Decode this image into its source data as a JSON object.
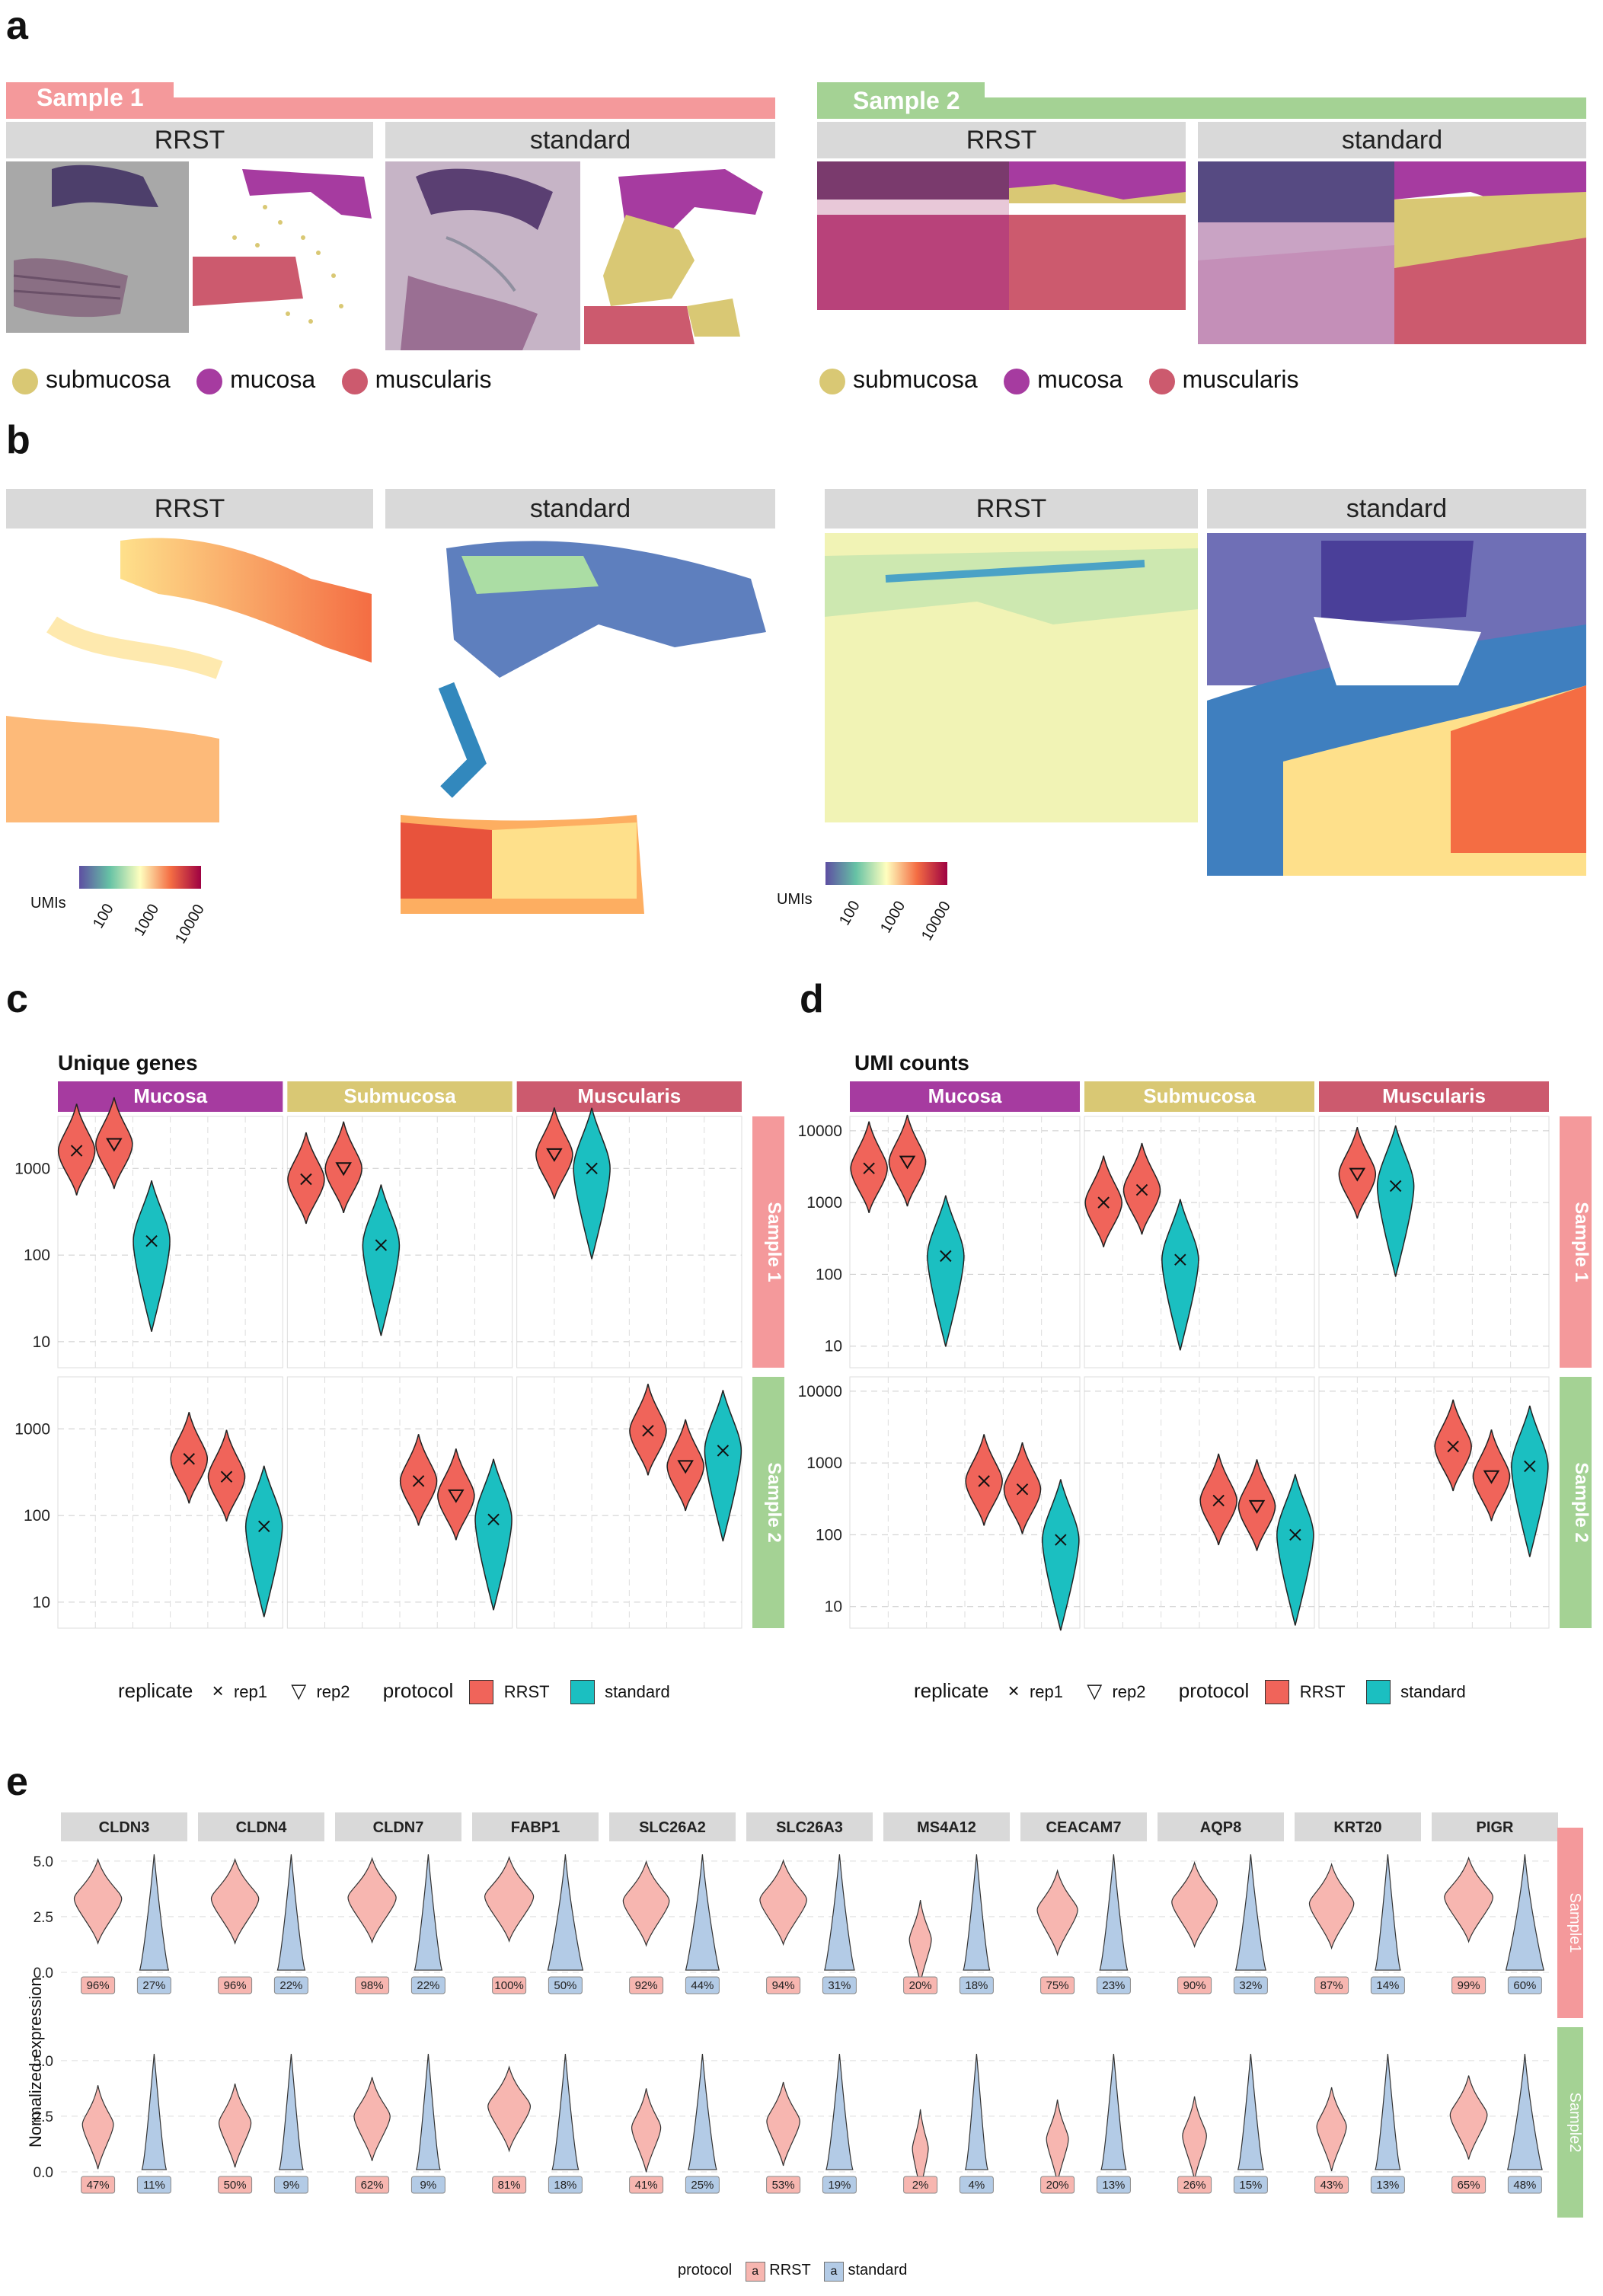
{
  "panels": {
    "a": "a",
    "b": "b",
    "c": "c",
    "d": "d",
    "e": "e"
  },
  "panel_a": {
    "sample1": "Sample 1",
    "sample2": "Sample 2",
    "rrst": "RRST",
    "standard": "standard",
    "legend": [
      {
        "label": "submucosa",
        "color": "#d9c874"
      },
      {
        "label": "mucosa",
        "color": "#a63ba0"
      },
      {
        "label": "muscularis",
        "color": "#cc5a6e"
      }
    ],
    "colors": {
      "sample1": "#f4999b",
      "sample2": "#a4d294",
      "strip": "#d9d9d9"
    }
  },
  "panel_b": {
    "rrst": "RRST",
    "standard": "standard",
    "cbar_label": "UMIs",
    "cbar_ticks": [
      "100",
      "1000",
      "10000"
    ]
  },
  "panel_c": {
    "title": "Unique genes",
    "facets": [
      "Mucosa",
      "Submucosa",
      "Muscularis"
    ],
    "rows": [
      "Sample 1",
      "Sample 2"
    ],
    "yticks": [
      "1000",
      "100",
      "10"
    ],
    "chart_data": {
      "type": "violin",
      "scale": "log10",
      "facet_colors": {
        "Mucosa": "#a63ba0",
        "Submucosa": "#d9c874",
        "Muscularis": "#cc5a6e"
      },
      "series": [
        {
          "row": "Sample 1",
          "facet": "Mucosa",
          "groups": [
            {
              "protocol": "RRST",
              "replicate": "rep1",
              "median": 1600
            },
            {
              "protocol": "RRST",
              "replicate": "rep2",
              "median": 1900
            },
            {
              "protocol": "standard",
              "replicate": "rep1",
              "median": 145
            }
          ]
        },
        {
          "row": "Sample 1",
          "facet": "Submucosa",
          "groups": [
            {
              "protocol": "RRST",
              "replicate": "rep1",
              "median": 750
            },
            {
              "protocol": "RRST",
              "replicate": "rep2",
              "median": 1000
            },
            {
              "protocol": "standard",
              "replicate": "rep1",
              "median": 130
            }
          ]
        },
        {
          "row": "Sample 1",
          "facet": "Muscularis",
          "groups": [
            {
              "protocol": "RRST",
              "replicate": "rep2",
              "median": 1450
            },
            {
              "protocol": "standard",
              "replicate": "rep1",
              "median": 1000
            }
          ]
        },
        {
          "row": "Sample 2",
          "facet": "Mucosa",
          "groups": [
            {
              "protocol": "RRST",
              "replicate": "rep1",
              "median": 450
            },
            {
              "protocol": "RRST",
              "replicate": "rep1",
              "median": 280
            },
            {
              "protocol": "standard",
              "replicate": "rep1",
              "median": 75
            }
          ]
        },
        {
          "row": "Sample 2",
          "facet": "Submucosa",
          "groups": [
            {
              "protocol": "RRST",
              "replicate": "rep1",
              "median": 250
            },
            {
              "protocol": "RRST",
              "replicate": "rep2",
              "median": 170
            },
            {
              "protocol": "standard",
              "replicate": "rep1",
              "median": 90
            }
          ]
        },
        {
          "row": "Sample 2",
          "facet": "Muscularis",
          "groups": [
            {
              "protocol": "RRST",
              "replicate": "rep1",
              "median": 950
            },
            {
              "protocol": "RRST",
              "replicate": "rep2",
              "median": 370
            },
            {
              "protocol": "standard",
              "replicate": "rep1",
              "median": 560
            }
          ]
        }
      ]
    }
  },
  "panel_d": {
    "title": "UMI counts",
    "facets": [
      "Mucosa",
      "Submucosa",
      "Muscularis"
    ],
    "rows": [
      "Sample 1",
      "Sample 2"
    ],
    "yticks_top": [
      "10000",
      "1000",
      "100",
      "10"
    ],
    "yticks_bottom": [
      "10000",
      "1000",
      "100",
      "10"
    ],
    "chart_data": {
      "type": "violin",
      "scale": "log10",
      "series": [
        {
          "row": "Sample 1",
          "facet": "Mucosa",
          "groups": [
            {
              "protocol": "RRST",
              "replicate": "rep1",
              "median": 3000
            },
            {
              "protocol": "RRST",
              "replicate": "rep2",
              "median": 3700
            },
            {
              "protocol": "standard",
              "replicate": "rep1",
              "median": 180
            }
          ]
        },
        {
          "row": "Sample 1",
          "facet": "Submucosa",
          "groups": [
            {
              "protocol": "RRST",
              "replicate": "rep1",
              "median": 1000
            },
            {
              "protocol": "RRST",
              "replicate": "rep1",
              "median": 1500
            },
            {
              "protocol": "standard",
              "replicate": "rep1",
              "median": 160
            }
          ]
        },
        {
          "row": "Sample 1",
          "facet": "Muscularis",
          "groups": [
            {
              "protocol": "RRST",
              "replicate": "rep2",
              "median": 2500
            },
            {
              "protocol": "standard",
              "replicate": "rep1",
              "median": 1700
            }
          ]
        },
        {
          "row": "Sample 2",
          "facet": "Mucosa",
          "groups": [
            {
              "protocol": "RRST",
              "replicate": "rep1",
              "median": 560
            },
            {
              "protocol": "RRST",
              "replicate": "rep1",
              "median": 430
            },
            {
              "protocol": "standard",
              "replicate": "rep1",
              "median": 85
            }
          ]
        },
        {
          "row": "Sample 2",
          "facet": "Submucosa",
          "groups": [
            {
              "protocol": "RRST",
              "replicate": "rep1",
              "median": 300
            },
            {
              "protocol": "RRST",
              "replicate": "rep2",
              "median": 250
            },
            {
              "protocol": "standard",
              "replicate": "rep1",
              "median": 100
            }
          ]
        },
        {
          "row": "Sample 2",
          "facet": "Muscularis",
          "groups": [
            {
              "protocol": "RRST",
              "replicate": "rep1",
              "median": 1700
            },
            {
              "protocol": "RRST",
              "replicate": "rep2",
              "median": 650
            },
            {
              "protocol": "standard",
              "replicate": "rep1",
              "median": 900
            }
          ]
        }
      ]
    }
  },
  "legend_cd": {
    "replicate_title": "replicate",
    "rep1": "rep1",
    "rep2": "rep2",
    "protocol_title": "protocol",
    "rrst": "RRST",
    "standard": "standard",
    "colors": {
      "RRST": "#f0645a",
      "standard": "#1bbfc1"
    }
  },
  "panel_e": {
    "ylabel": "Normalized expression",
    "yticks": [
      "5.0",
      "2.5",
      "0.0"
    ],
    "rows": [
      "Sample1",
      "Sample2"
    ],
    "legend_title": "protocol",
    "legend_rrst": "RRST",
    "legend_standard": "standard",
    "legend_key": "a",
    "genes": [
      "CLDN3",
      "CLDN4",
      "CLDN7",
      "FABP1",
      "SLC26A2",
      "SLC26A3",
      "MS4A12",
      "CEACAM7",
      "AQP8",
      "KRT20",
      "PIGR"
    ],
    "chart_data": {
      "type": "violin",
      "pct_sample1_rrst": [
        "96%",
        "96%",
        "98%",
        "100%",
        "92%",
        "94%",
        "20%",
        "75%",
        "90%",
        "87%",
        "99%"
      ],
      "pct_sample1_standard": [
        "27%",
        "22%",
        "22%",
        "50%",
        "44%",
        "31%",
        "18%",
        "23%",
        "32%",
        "14%",
        "60%"
      ],
      "pct_sample2_rrst": [
        "47%",
        "50%",
        "62%",
        "81%",
        "41%",
        "53%",
        "2%",
        "20%",
        "26%",
        "43%",
        "65%"
      ],
      "pct_sample2_standard": [
        "11%",
        "9%",
        "9%",
        "18%",
        "25%",
        "19%",
        "4%",
        "13%",
        "15%",
        "13%",
        "48%"
      ],
      "colors": {
        "RRST": "#f7b6b0",
        "standard": "#b3cbe6"
      }
    }
  }
}
